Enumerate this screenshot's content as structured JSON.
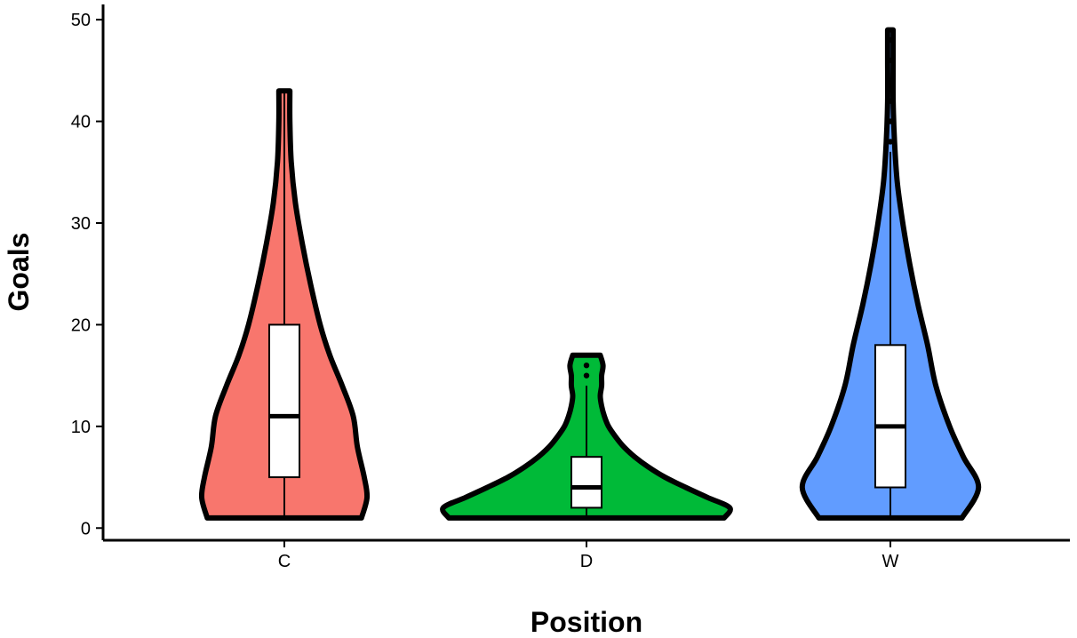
{
  "chart_data": {
    "type": "violin",
    "title": "",
    "xlabel": "Position",
    "ylabel": "Goals",
    "ylim": [
      -1.2,
      51.5
    ],
    "yticks": [
      0,
      10,
      20,
      30,
      40,
      50
    ],
    "grid": false,
    "legend": "none",
    "categories": [
      "C",
      "D",
      "W"
    ],
    "colors": [
      "#F8766D",
      "#00BA38",
      "#619CFF"
    ],
    "series": [
      {
        "category": "C",
        "min": 1,
        "q1": 5,
        "median": 11,
        "q3": 20,
        "max": 43,
        "outliers": [],
        "density": [
          [
            1,
            0.56
          ],
          [
            3,
            0.6
          ],
          [
            5,
            0.58
          ],
          [
            8,
            0.53
          ],
          [
            11,
            0.5
          ],
          [
            14,
            0.42
          ],
          [
            17,
            0.33
          ],
          [
            20,
            0.26
          ],
          [
            24,
            0.19
          ],
          [
            28,
            0.13
          ],
          [
            32,
            0.08
          ],
          [
            36,
            0.05
          ],
          [
            40,
            0.04
          ],
          [
            43,
            0.04
          ]
        ]
      },
      {
        "category": "D",
        "min": 1,
        "q1": 2,
        "median": 4,
        "q3": 7,
        "max": 14,
        "outliers": [
          15,
          16
        ],
        "density": [
          [
            1,
            1.0
          ],
          [
            2,
            1.04
          ],
          [
            3,
            0.88
          ],
          [
            4,
            0.72
          ],
          [
            5,
            0.57
          ],
          [
            6,
            0.45
          ],
          [
            7,
            0.35
          ],
          [
            8,
            0.27
          ],
          [
            9,
            0.21
          ],
          [
            10,
            0.16
          ],
          [
            11,
            0.13
          ],
          [
            12,
            0.11
          ],
          [
            13,
            0.1
          ],
          [
            14,
            0.11
          ],
          [
            15,
            0.11
          ],
          [
            16,
            0.12
          ],
          [
            17,
            0.1
          ]
        ]
      },
      {
        "category": "W",
        "min": 1,
        "q1": 4,
        "median": 10,
        "q3": 18,
        "max": 37,
        "outliers": [
          38,
          40,
          42,
          44,
          46,
          48
        ],
        "density": [
          [
            1,
            0.52
          ],
          [
            4,
            0.64
          ],
          [
            7,
            0.53
          ],
          [
            10,
            0.43
          ],
          [
            14,
            0.33
          ],
          [
            18,
            0.27
          ],
          [
            22,
            0.2
          ],
          [
            26,
            0.14
          ],
          [
            30,
            0.09
          ],
          [
            34,
            0.05
          ],
          [
            38,
            0.03
          ],
          [
            42,
            0.02
          ],
          [
            46,
            0.02
          ],
          [
            49,
            0.02
          ]
        ]
      }
    ]
  }
}
